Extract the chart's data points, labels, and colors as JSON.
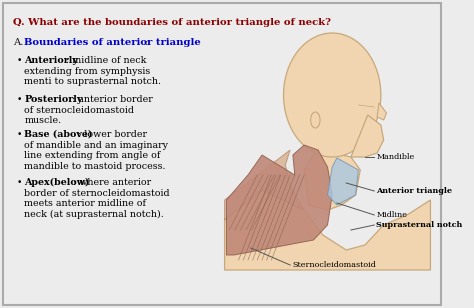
{
  "bg_color": "#ececec",
  "border_color": "#aaaaaa",
  "title": "Q. What are the boundaries of anterior triangle of neck?",
  "title_color": "#8B0000",
  "subtitle_a": "A. ",
  "subtitle_bold": "Boundaries of anterior triangle",
  "subtitle_colon": ":",
  "subtitle_color": "#0000cc",
  "text_color": "#111111",
  "bullets": [
    [
      "Anteriorly",
      ": midline of neck",
      "extending from symphysis",
      "menti to suprasternal notch."
    ],
    [
      "Posteriorly",
      ": anterior border",
      "of sternocleidomastoid",
      "muscle."
    ],
    [
      "Base (above)",
      ": lower border",
      "of mandible and an imaginary",
      "line extending from angle of",
      "mandible to mastoid process."
    ],
    [
      "Apex(below)",
      ": where anterior",
      "border of sternocleidomastoid",
      "meets anterior midline of",
      "neck (at suprasternal notch)."
    ]
  ],
  "skin_color": "#f0d5b0",
  "skin_edge": "#c8a87a",
  "muscle_color": "#c08878",
  "muscle_edge": "#906050",
  "tri_color": "#aac8e0",
  "tri_edge": "#7090b0",
  "neck_fill": "#d9a88a",
  "fiber_color": "#8B6050",
  "label_color": "#111111",
  "line_color": "#555555"
}
